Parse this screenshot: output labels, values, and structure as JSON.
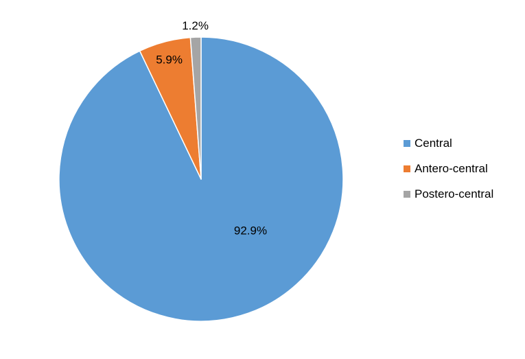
{
  "chart_data": {
    "type": "pie",
    "title": "",
    "slices": [
      {
        "label": "Central",
        "value": 92.9,
        "display": "92.9%",
        "color": "#5B9BD5"
      },
      {
        "label": "Antero-central",
        "value": 5.9,
        "display": "5.9%",
        "color": "#ED7D31"
      },
      {
        "label": "Postero-central",
        "value": 1.2,
        "display": "1.2%",
        "color": "#A5A5A5"
      }
    ],
    "start_angle": "12 o'clock",
    "direction": "clockwise",
    "legend_position": "right"
  }
}
